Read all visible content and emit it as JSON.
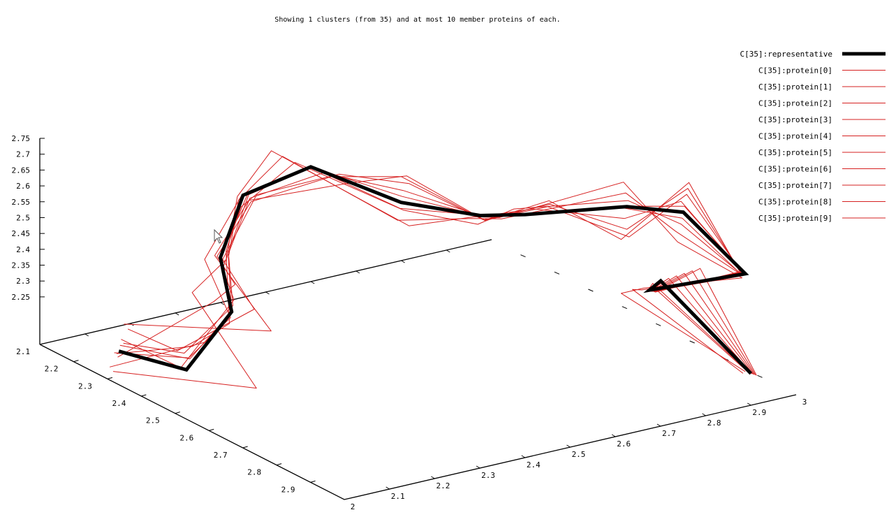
{
  "chart_data": {
    "type": "line",
    "dimensions": 3,
    "title": "Showing 1 clusters (from 35) and at most 10 member proteins of each.",
    "z_ticks": [
      "2.75",
      "2.7",
      "2.65",
      "2.6",
      "2.55",
      "2.5",
      "2.45",
      "2.4",
      "2.35",
      "2.3",
      "2.25",
      "2.1"
    ],
    "left_axis_ticks": [
      "2.2",
      "2.3",
      "2.4",
      "2.5",
      "2.6",
      "2.7",
      "2.8",
      "2.9"
    ],
    "right_axis_ticks": [
      "2",
      "2.1",
      "2.2",
      "2.3",
      "2.4",
      "2.5",
      "2.6",
      "2.7",
      "2.8",
      "2.9",
      "3"
    ],
    "legend_position": "top-right",
    "representative": {
      "name": "C[35]:representative",
      "color": "#000000",
      "points": [
        [
          2.1,
          2.2,
          2.1
        ],
        [
          2.1,
          2.4,
          2.15
        ],
        [
          2.2,
          2.4,
          2.3
        ],
        [
          2.25,
          2.3,
          2.4
        ],
        [
          2.3,
          2.3,
          2.58
        ],
        [
          2.45,
          2.3,
          2.62
        ],
        [
          2.5,
          2.5,
          2.6
        ],
        [
          2.6,
          2.6,
          2.58
        ],
        [
          2.7,
          2.6,
          2.55
        ],
        [
          2.85,
          2.7,
          2.58
        ],
        [
          2.9,
          2.8,
          2.6
        ],
        [
          3.0,
          2.85,
          2.4
        ],
        [
          2.9,
          2.7,
          2.3
        ],
        [
          2.85,
          2.8,
          2.4
        ],
        [
          2.9,
          3.0,
          2.2
        ]
      ]
    },
    "series": [
      {
        "name": "C[35]:protein[0]",
        "color": "#d62020",
        "points": [
          [
            2.12,
            2.18,
            2.12
          ],
          [
            2.05,
            2.45,
            2.2
          ],
          [
            2.22,
            2.38,
            2.32
          ],
          [
            2.24,
            2.32,
            2.38
          ],
          [
            2.33,
            2.28,
            2.55
          ],
          [
            2.47,
            2.31,
            2.6
          ],
          [
            2.52,
            2.48,
            2.62
          ],
          [
            2.62,
            2.58,
            2.56
          ],
          [
            2.71,
            2.61,
            2.57
          ],
          [
            2.83,
            2.72,
            2.56
          ],
          [
            2.91,
            2.78,
            2.62
          ],
          [
            2.98,
            2.87,
            2.42
          ],
          [
            2.92,
            2.68,
            2.28
          ],
          [
            2.87,
            2.82,
            2.42
          ],
          [
            2.92,
            2.98,
            2.18
          ]
        ]
      },
      {
        "name": "C[35]:protein[1]",
        "color": "#d62020",
        "points": [
          [
            2.08,
            2.22,
            2.11
          ],
          [
            2.15,
            2.35,
            2.18
          ],
          [
            2.18,
            2.42,
            2.28
          ],
          [
            2.27,
            2.29,
            2.41
          ],
          [
            2.28,
            2.32,
            2.56
          ],
          [
            2.43,
            2.28,
            2.63
          ],
          [
            2.49,
            2.52,
            2.59
          ],
          [
            2.58,
            2.62,
            2.57
          ],
          [
            2.69,
            2.58,
            2.56
          ],
          [
            2.86,
            2.69,
            2.59
          ],
          [
            2.88,
            2.82,
            2.58
          ],
          [
            3.01,
            2.83,
            2.38
          ],
          [
            2.89,
            2.72,
            2.31
          ],
          [
            2.84,
            2.79,
            2.38
          ],
          [
            2.88,
            3.02,
            2.22
          ]
        ]
      },
      {
        "name": "C[35]:protein[2]",
        "color": "#d62020",
        "points": [
          [
            2.15,
            2.15,
            2.14
          ],
          [
            2.0,
            2.35,
            2.3
          ],
          [
            2.25,
            2.45,
            2.25
          ],
          [
            2.2,
            2.35,
            2.45
          ],
          [
            2.35,
            2.25,
            2.52
          ],
          [
            2.5,
            2.35,
            2.58
          ],
          [
            2.55,
            2.45,
            2.64
          ],
          [
            2.65,
            2.55,
            2.52
          ],
          [
            2.73,
            2.63,
            2.6
          ],
          [
            2.8,
            2.75,
            2.52
          ],
          [
            2.95,
            2.75,
            2.65
          ],
          [
            2.95,
            2.9,
            2.45
          ],
          [
            2.95,
            2.65,
            2.25
          ],
          [
            2.9,
            2.85,
            2.45
          ],
          [
            2.95,
            2.95,
            2.15
          ]
        ]
      },
      {
        "name": "C[35]:protein[3]",
        "color": "#d62020",
        "points": [
          [
            2.05,
            2.25,
            2.08
          ],
          [
            2.18,
            2.5,
            2.12
          ],
          [
            2.15,
            2.35,
            2.35
          ],
          [
            2.3,
            2.25,
            2.35
          ],
          [
            2.25,
            2.35,
            2.62
          ],
          [
            2.4,
            2.25,
            2.66
          ],
          [
            2.48,
            2.55,
            2.56
          ],
          [
            2.55,
            2.65,
            2.62
          ],
          [
            2.68,
            2.55,
            2.52
          ],
          [
            2.88,
            2.65,
            2.62
          ],
          [
            2.85,
            2.85,
            2.55
          ],
          [
            3.03,
            2.8,
            2.35
          ],
          [
            2.85,
            2.75,
            2.35
          ],
          [
            2.8,
            2.75,
            2.35
          ],
          [
            2.85,
            3.05,
            2.25
          ]
        ]
      },
      {
        "name": "C[35]:protein[4]",
        "color": "#d62020",
        "points": [
          [
            2.14,
            2.16,
            2.09
          ],
          [
            2.08,
            2.42,
            2.22
          ],
          [
            2.21,
            2.39,
            2.31
          ],
          [
            2.26,
            2.31,
            2.42
          ],
          [
            2.32,
            2.29,
            2.57
          ],
          [
            2.46,
            2.29,
            2.61
          ],
          [
            2.51,
            2.49,
            2.61
          ],
          [
            2.61,
            2.59,
            2.57
          ],
          [
            2.71,
            2.59,
            2.54
          ],
          [
            2.84,
            2.71,
            2.59
          ],
          [
            2.91,
            2.79,
            2.61
          ],
          [
            2.99,
            2.86,
            2.41
          ],
          [
            2.91,
            2.69,
            2.29
          ],
          [
            2.86,
            2.81,
            2.41
          ],
          [
            2.91,
            2.99,
            2.19
          ]
        ]
      },
      {
        "name": "C[35]:protein[5]",
        "color": "#d62020",
        "points": [
          [
            2.06,
            2.24,
            2.13
          ],
          [
            2.12,
            2.38,
            2.17
          ],
          [
            2.19,
            2.41,
            2.29
          ],
          [
            2.23,
            2.28,
            2.39
          ],
          [
            2.29,
            2.31,
            2.59
          ],
          [
            2.44,
            2.31,
            2.63
          ],
          [
            2.49,
            2.51,
            2.59
          ],
          [
            2.59,
            2.61,
            2.59
          ],
          [
            2.69,
            2.61,
            2.56
          ],
          [
            2.85,
            2.69,
            2.57
          ],
          [
            2.89,
            2.81,
            2.59
          ],
          [
            3.0,
            2.84,
            2.39
          ],
          [
            2.89,
            2.71,
            2.31
          ],
          [
            2.84,
            2.79,
            2.39
          ],
          [
            2.89,
            3.01,
            2.21
          ]
        ]
      },
      {
        "name": "C[35]:protein[6]",
        "color": "#d62020",
        "points": [
          [
            2.18,
            2.12,
            2.1
          ],
          [
            2.02,
            2.48,
            2.28
          ],
          [
            2.28,
            2.36,
            2.26
          ],
          [
            2.21,
            2.36,
            2.44
          ],
          [
            2.36,
            2.26,
            2.54
          ],
          [
            2.49,
            2.33,
            2.6
          ],
          [
            2.54,
            2.47,
            2.63
          ],
          [
            2.63,
            2.57,
            2.54
          ],
          [
            2.74,
            2.62,
            2.58
          ],
          [
            2.82,
            2.74,
            2.54
          ],
          [
            2.94,
            2.76,
            2.64
          ],
          [
            2.96,
            2.89,
            2.44
          ],
          [
            2.94,
            2.66,
            2.26
          ],
          [
            2.89,
            2.84,
            2.44
          ],
          [
            2.94,
            2.96,
            2.16
          ]
        ]
      },
      {
        "name": "C[35]:protein[7]",
        "color": "#d62020",
        "points": [
          [
            2.02,
            2.28,
            2.12
          ],
          [
            2.2,
            2.32,
            2.16
          ],
          [
            2.17,
            2.44,
            2.33
          ],
          [
            2.29,
            2.27,
            2.37
          ],
          [
            2.26,
            2.34,
            2.6
          ],
          [
            2.41,
            2.27,
            2.65
          ],
          [
            2.47,
            2.53,
            2.57
          ],
          [
            2.56,
            2.63,
            2.6
          ],
          [
            2.67,
            2.57,
            2.53
          ],
          [
            2.87,
            2.67,
            2.6
          ],
          [
            2.86,
            2.83,
            2.57
          ],
          [
            3.02,
            2.81,
            2.37
          ],
          [
            2.86,
            2.73,
            2.33
          ],
          [
            2.81,
            2.77,
            2.37
          ],
          [
            2.86,
            3.03,
            2.23
          ]
        ]
      },
      {
        "name": "C[35]:protein[8]",
        "color": "#d62020",
        "points": [
          [
            2.11,
            2.19,
            2.11
          ],
          [
            2.1,
            2.41,
            2.19
          ],
          [
            2.2,
            2.4,
            2.3
          ],
          [
            2.25,
            2.3,
            2.4
          ],
          [
            2.31,
            2.3,
            2.58
          ],
          [
            2.45,
            2.3,
            2.62
          ],
          [
            2.5,
            2.5,
            2.6
          ],
          [
            2.6,
            2.6,
            2.58
          ],
          [
            2.7,
            2.6,
            2.55
          ],
          [
            2.85,
            2.7,
            2.58
          ],
          [
            2.9,
            2.8,
            2.6
          ],
          [
            3.0,
            2.85,
            2.4
          ],
          [
            2.9,
            2.7,
            2.3
          ],
          [
            2.85,
            2.8,
            2.4
          ],
          [
            2.9,
            3.0,
            2.2
          ]
        ]
      },
      {
        "name": "C[35]:protein[9]",
        "color": "#d62020",
        "points": [
          [
            2.09,
            2.21,
            2.09
          ],
          [
            2.25,
            2.28,
            2.25
          ],
          [
            2.23,
            2.37,
            2.36
          ],
          [
            2.22,
            2.33,
            2.43
          ],
          [
            2.34,
            2.27,
            2.53
          ],
          [
            2.48,
            2.32,
            2.59
          ],
          [
            2.53,
            2.46,
            2.65
          ],
          [
            2.64,
            2.56,
            2.53
          ],
          [
            2.72,
            2.64,
            2.59
          ],
          [
            2.81,
            2.76,
            2.53
          ],
          [
            2.93,
            2.77,
            2.63
          ],
          [
            2.97,
            2.88,
            2.43
          ],
          [
            2.93,
            2.67,
            2.27
          ],
          [
            2.88,
            2.83,
            2.43
          ],
          [
            2.93,
            2.97,
            2.17
          ]
        ]
      }
    ]
  }
}
